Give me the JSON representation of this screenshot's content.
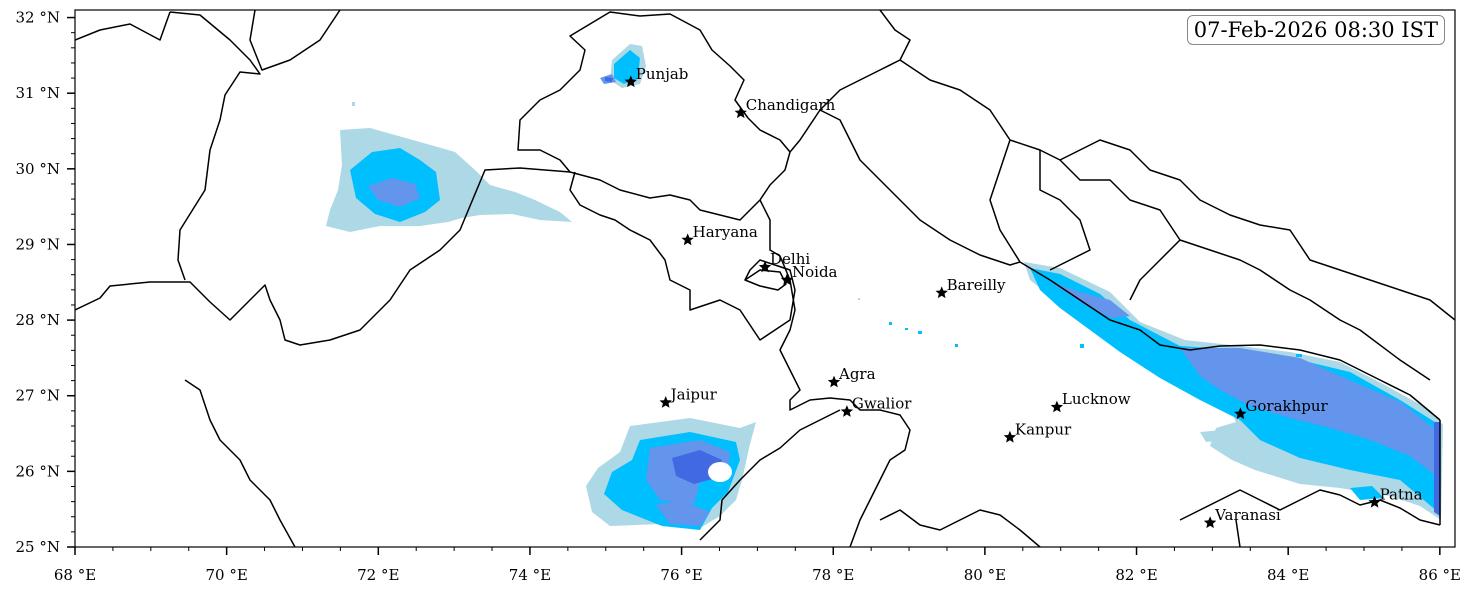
{
  "timestamp": "07-Feb-2026 08:30 IST",
  "colors": {
    "light": "#add8e6",
    "medium": "#00bfff",
    "heavy": "#6495ed",
    "very_heavy": "#4169e1",
    "border": "#000000"
  },
  "axes": {
    "lon_ticks": [
      {
        "v": 68,
        "label": "68 °E"
      },
      {
        "v": 70,
        "label": "70 °E"
      },
      {
        "v": 72,
        "label": "72 °E"
      },
      {
        "v": 74,
        "label": "74 °E"
      },
      {
        "v": 76,
        "label": "76 °E"
      },
      {
        "v": 78,
        "label": "78 °E"
      },
      {
        "v": 80,
        "label": "80 °E"
      },
      {
        "v": 82,
        "label": "82 °E"
      },
      {
        "v": 84,
        "label": "84 °E"
      },
      {
        "v": 86,
        "label": "86 °E"
      }
    ],
    "lat_ticks": [
      {
        "v": 25,
        "label": "25 °N"
      },
      {
        "v": 26,
        "label": "26 °N"
      },
      {
        "v": 27,
        "label": "27 °N"
      },
      {
        "v": 28,
        "label": "28 °N"
      },
      {
        "v": 29,
        "label": "29 °N"
      },
      {
        "v": 30,
        "label": "30 °N"
      },
      {
        "v": 31,
        "label": "31 °N"
      },
      {
        "v": 32,
        "label": "32 °N"
      }
    ],
    "lon_range": [
      68,
      86.2
    ],
    "lat_range": [
      25,
      32.1
    ]
  },
  "cities": [
    {
      "name": "Punjab",
      "lon": 75.33,
      "lat": 31.15
    },
    {
      "name": "Chandigarh",
      "lon": 76.78,
      "lat": 30.74
    },
    {
      "name": "Haryana",
      "lon": 76.08,
      "lat": 29.06
    },
    {
      "name": "Delhi",
      "lon": 77.1,
      "lat": 28.7
    },
    {
      "name": "Noida",
      "lon": 77.39,
      "lat": 28.53
    },
    {
      "name": "Bareilly",
      "lon": 79.43,
      "lat": 28.36
    },
    {
      "name": "Agra",
      "lon": 78.01,
      "lat": 27.18
    },
    {
      "name": "Jaipur",
      "lon": 75.79,
      "lat": 26.91
    },
    {
      "name": "Gwalior",
      "lon": 78.18,
      "lat": 26.79
    },
    {
      "name": "Lucknow",
      "lon": 80.95,
      "lat": 26.85
    },
    {
      "name": "Kanpur",
      "lon": 80.33,
      "lat": 26.45
    },
    {
      "name": "Gorakhpur",
      "lon": 83.37,
      "lat": 26.76
    },
    {
      "name": "Patna",
      "lon": 85.14,
      "lat": 25.59
    },
    {
      "name": "Varanasi",
      "lon": 82.97,
      "lat": 25.32
    }
  ]
}
